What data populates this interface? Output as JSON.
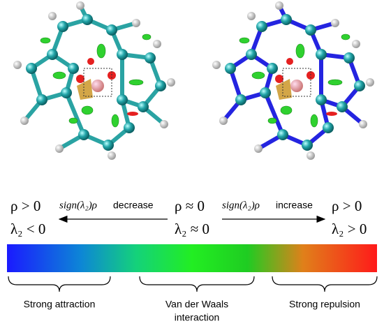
{
  "left": {
    "rho": "ρ > 0",
    "lambda": "λ₂ < 0"
  },
  "arrow_left": {
    "expr": "sign(λ₂)ρ",
    "word": "decrease"
  },
  "center": {
    "rho": "ρ ≈ 0",
    "lambda": "λ₂ ≈ 0"
  },
  "arrow_right": {
    "expr": "sign(λ₂)ρ",
    "word": "increase"
  },
  "right": {
    "rho": "ρ > 0",
    "lambda": "λ₂ > 0"
  },
  "regions": [
    {
      "lines": [
        "Strong attraction"
      ]
    },
    {
      "lines": [
        "Van der Waals",
        "interaction"
      ]
    },
    {
      "lines": [
        "Strong repulsion"
      ]
    }
  ]
}
